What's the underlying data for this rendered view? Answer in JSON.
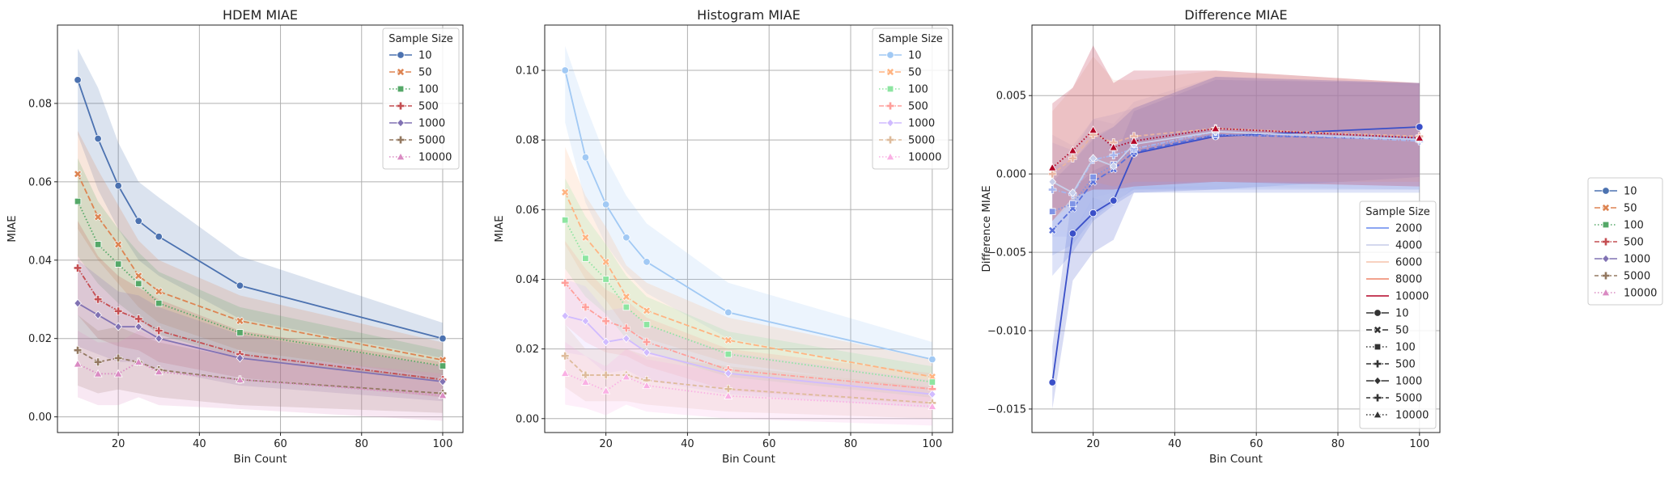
{
  "chart_data": [
    {
      "type": "line",
      "title": "HDEM MIAE",
      "xlabel": "Bin Count",
      "ylabel": "MIAE",
      "xlim": [
        5,
        105
      ],
      "ylim": [
        -0.004,
        0.1
      ],
      "xticks": [
        20,
        40,
        60,
        80,
        100
      ],
      "yticks": [
        0.0,
        0.02,
        0.04,
        0.06,
        0.08
      ],
      "ytick_labels": [
        "0.00",
        "0.02",
        "0.04",
        "0.06",
        "0.08"
      ],
      "grid": true,
      "legend": {
        "title": "Sample Size",
        "placement": "top-right"
      },
      "x": [
        10,
        15,
        20,
        25,
        30,
        50,
        100
      ],
      "series": [
        {
          "name": "10",
          "color": "#4c72b0",
          "dash": "",
          "marker": "circle",
          "values": [
            0.086,
            0.071,
            0.059,
            0.05,
            0.046,
            0.0335,
            0.02
          ],
          "lower": [
            0.072,
            0.058,
            0.048,
            0.04,
            0.036,
            0.025,
            0.015
          ],
          "upper": [
            0.094,
            0.084,
            0.07,
            0.06,
            0.056,
            0.041,
            0.024
          ]
        },
        {
          "name": "50",
          "color": "#dd8452",
          "dash": "7,3",
          "marker": "x",
          "values": [
            0.062,
            0.051,
            0.044,
            0.036,
            0.032,
            0.0245,
            0.0145
          ],
          "lower": [
            0.048,
            0.04,
            0.034,
            0.028,
            0.024,
            0.017,
            0.01
          ],
          "upper": [
            0.073,
            0.063,
            0.054,
            0.045,
            0.04,
            0.031,
            0.019
          ]
        },
        {
          "name": "100",
          "color": "#55a868",
          "dash": "1.5,2.5",
          "marker": "square",
          "values": [
            0.055,
            0.044,
            0.039,
            0.034,
            0.029,
            0.0215,
            0.013
          ],
          "lower": [
            0.041,
            0.034,
            0.029,
            0.025,
            0.021,
            0.015,
            0.009
          ],
          "upper": [
            0.066,
            0.055,
            0.048,
            0.042,
            0.037,
            0.028,
            0.017
          ]
        },
        {
          "name": "500",
          "color": "#c44e52",
          "dash": "6,2,1.5,2",
          "marker": "plus",
          "values": [
            0.038,
            0.03,
            0.027,
            0.025,
            0.022,
            0.016,
            0.0095
          ],
          "lower": [
            0.026,
            0.02,
            0.018,
            0.017,
            0.014,
            0.01,
            0.005
          ],
          "upper": [
            0.05,
            0.041,
            0.036,
            0.033,
            0.03,
            0.022,
            0.014
          ]
        },
        {
          "name": "1000",
          "color": "#8172b3",
          "dash": "",
          "marker": "diamond",
          "values": [
            0.029,
            0.026,
            0.023,
            0.023,
            0.02,
            0.015,
            0.009
          ],
          "lower": [
            0.018,
            0.016,
            0.014,
            0.014,
            0.012,
            0.008,
            0.004
          ],
          "upper": [
            0.04,
            0.036,
            0.032,
            0.031,
            0.028,
            0.021,
            0.013
          ]
        },
        {
          "name": "5000",
          "color": "#937860",
          "dash": "5,3",
          "marker": "plus",
          "values": [
            0.017,
            0.014,
            0.015,
            0.014,
            0.012,
            0.0095,
            0.006
          ],
          "lower": [
            0.008,
            0.006,
            0.007,
            0.006,
            0.005,
            0.003,
            0.001
          ],
          "upper": [
            0.026,
            0.022,
            0.023,
            0.021,
            0.019,
            0.015,
            0.01
          ]
        },
        {
          "name": "10000",
          "color": "#da8bc3",
          "dash": "1.5,2.5",
          "marker": "triangle",
          "values": [
            0.0135,
            0.011,
            0.011,
            0.014,
            0.0115,
            0.0095,
            0.0055
          ],
          "lower": [
            0.005,
            0.003,
            0.003,
            0.005,
            0.003,
            0.002,
            -0.001
          ],
          "upper": [
            0.022,
            0.019,
            0.019,
            0.022,
            0.02,
            0.016,
            0.011
          ]
        }
      ]
    },
    {
      "type": "line",
      "title": "Histogram MIAE",
      "xlabel": "Bin Count",
      "ylabel": "MIAE",
      "xlim": [
        5,
        105
      ],
      "ylim": [
        -0.004,
        0.113
      ],
      "xticks": [
        20,
        40,
        60,
        80,
        100
      ],
      "yticks": [
        0.0,
        0.02,
        0.04,
        0.06,
        0.08,
        0.1
      ],
      "ytick_labels": [
        "0.00",
        "0.02",
        "0.04",
        "0.06",
        "0.08",
        "0.10"
      ],
      "grid": true,
      "legend": {
        "title": "Sample Size",
        "placement": "top-right"
      },
      "x": [
        10,
        15,
        20,
        25,
        30,
        50,
        100
      ],
      "series": [
        {
          "name": "10",
          "color": "#a1c9f4",
          "dash": "",
          "marker": "circle",
          "values": [
            0.1,
            0.075,
            0.0615,
            0.052,
            0.045,
            0.0305,
            0.017
          ],
          "lower": [
            0.085,
            0.062,
            0.05,
            0.042,
            0.036,
            0.023,
            0.012
          ],
          "upper": [
            0.107,
            0.09,
            0.075,
            0.064,
            0.056,
            0.039,
            0.022
          ]
        },
        {
          "name": "50",
          "color": "#ffb482",
          "dash": "7,3",
          "marker": "x",
          "values": [
            0.065,
            0.052,
            0.045,
            0.035,
            0.031,
            0.0225,
            0.012
          ],
          "lower": [
            0.05,
            0.04,
            0.034,
            0.026,
            0.023,
            0.016,
            0.008
          ],
          "upper": [
            0.078,
            0.064,
            0.055,
            0.044,
            0.039,
            0.029,
            0.017
          ]
        },
        {
          "name": "100",
          "color": "#8de5a1",
          "dash": "1.5,2.5",
          "marker": "square",
          "values": [
            0.057,
            0.046,
            0.04,
            0.032,
            0.027,
            0.0185,
            0.0105
          ],
          "lower": [
            0.043,
            0.035,
            0.03,
            0.023,
            0.019,
            0.012,
            0.006
          ],
          "upper": [
            0.069,
            0.058,
            0.05,
            0.041,
            0.035,
            0.025,
            0.015
          ]
        },
        {
          "name": "500",
          "color": "#ff9f9b",
          "dash": "6,2,1.5,2",
          "marker": "plus",
          "values": [
            0.039,
            0.032,
            0.028,
            0.026,
            0.022,
            0.014,
            0.0085
          ],
          "lower": [
            0.027,
            0.022,
            0.019,
            0.018,
            0.015,
            0.008,
            0.004
          ],
          "upper": [
            0.051,
            0.043,
            0.037,
            0.034,
            0.029,
            0.02,
            0.013
          ]
        },
        {
          "name": "1000",
          "color": "#d0bbff",
          "dash": "",
          "marker": "diamond",
          "values": [
            0.0295,
            0.028,
            0.022,
            0.023,
            0.019,
            0.013,
            0.007
          ],
          "lower": [
            0.019,
            0.018,
            0.013,
            0.014,
            0.011,
            0.007,
            0.003
          ],
          "upper": [
            0.04,
            0.038,
            0.031,
            0.032,
            0.027,
            0.019,
            0.011
          ]
        },
        {
          "name": "5000",
          "color": "#debb9b",
          "dash": "5,3",
          "marker": "plus",
          "values": [
            0.018,
            0.0125,
            0.0125,
            0.0125,
            0.011,
            0.0085,
            0.0045
          ],
          "lower": [
            0.009,
            0.005,
            0.005,
            0.005,
            0.004,
            0.002,
            0.0
          ],
          "upper": [
            0.027,
            0.02,
            0.02,
            0.02,
            0.018,
            0.015,
            0.009
          ]
        },
        {
          "name": "10000",
          "color": "#fab0e4",
          "dash": "1.5,2.5",
          "marker": "triangle",
          "values": [
            0.013,
            0.0105,
            0.008,
            0.012,
            0.0095,
            0.0065,
            0.0035
          ],
          "lower": [
            0.004,
            0.003,
            0.001,
            0.004,
            0.002,
            0.0,
            -0.002
          ],
          "upper": [
            0.022,
            0.018,
            0.015,
            0.02,
            0.017,
            0.013,
            0.009
          ]
        }
      ]
    },
    {
      "type": "line",
      "title": "Difference MIAE",
      "xlabel": "Bin Count",
      "ylabel": "Difference MIAE",
      "xlim": [
        5,
        105
      ],
      "ylim": [
        -0.0165,
        0.0095
      ],
      "xticks": [
        20,
        40,
        60,
        80,
        100
      ],
      "yticks": [
        -0.015,
        -0.01,
        -0.005,
        0.0,
        0.005
      ],
      "ytick_labels": [
        "−0.015",
        "−0.010",
        "−0.005",
        "0.000",
        "0.005"
      ],
      "grid": true,
      "legend": {
        "title": "Sample Size",
        "placement": "lower-right"
      },
      "x": [
        10,
        15,
        20,
        25,
        30,
        50,
        100
      ],
      "series": [
        {
          "name": "10",
          "color": "#3a4fc8",
          "dash": "",
          "marker": "circle",
          "values": [
            -0.0133,
            -0.0038,
            -0.0025,
            -0.0017,
            0.0013,
            0.0024,
            0.003
          ],
          "lower": [
            -0.015,
            -0.0068,
            -0.005,
            -0.0042,
            -0.0012,
            -0.001,
            -0.0002
          ],
          "upper": [
            -0.011,
            -0.001,
            0.0002,
            0.0008,
            0.004,
            0.006,
            0.0058
          ]
        },
        {
          "name": "50",
          "color": "#5a71db",
          "dash": "7,3",
          "marker": "x",
          "values": [
            -0.0036,
            -0.0022,
            -0.0005,
            0.0003,
            0.0014,
            0.0025,
            0.0022
          ],
          "lower": [
            -0.0065,
            -0.005,
            -0.003,
            -0.002,
            -0.0012,
            -0.0012,
            -0.0012
          ],
          "upper": [
            -0.0005,
            0.0008,
            0.0022,
            0.003,
            0.0042,
            0.0062,
            0.0058
          ]
        },
        {
          "name": "100",
          "color": "#7f94e6",
          "dash": "1.5,2.5",
          "marker": "square",
          "values": [
            -0.0024,
            -0.0019,
            -0.0002,
            0.0006,
            0.0016,
            0.0025,
            0.0023
          ],
          "lower": [
            -0.0052,
            -0.0045,
            -0.0028,
            -0.0018,
            -0.001,
            -0.001,
            -0.001
          ],
          "upper": [
            0.0005,
            0.0008,
            0.0024,
            0.003,
            0.0042,
            0.0062,
            0.0058
          ]
        },
        {
          "name": "500",
          "color": "#a7b6ee",
          "dash": "6,2,1.5,2",
          "marker": "plus",
          "values": [
            -0.001,
            -0.0013,
            0.0009,
            0.0012,
            0.0016,
            0.0027,
            0.0021
          ],
          "lower": [
            -0.004,
            -0.004,
            -0.0015,
            -0.0012,
            -0.001,
            -0.0008,
            -0.001
          ],
          "upper": [
            0.002,
            0.0015,
            0.0035,
            0.0038,
            0.0042,
            0.0062,
            0.0056
          ]
        },
        {
          "name": "1000",
          "color": "#c8cfea",
          "dash": "",
          "marker": "diamond",
          "values": [
            -0.0005,
            -0.0012,
            0.001,
            0.0005,
            0.0019,
            0.0027,
            0.0022
          ],
          "lower": [
            -0.0035,
            -0.0038,
            -0.0015,
            -0.002,
            -0.0008,
            -0.0008,
            -0.001
          ],
          "upper": [
            0.0025,
            0.0018,
            0.0035,
            0.0032,
            0.0046,
            0.0062,
            0.0056
          ]
        },
        {
          "name": "5000",
          "color": "#e8b4a2",
          "dash": "5,3",
          "marker": "plus",
          "values": [
            0.0,
            0.001,
            0.0025,
            0.002,
            0.0024,
            0.0029,
            0.0024
          ],
          "lower": [
            -0.003,
            -0.0018,
            -0.0005,
            -0.0008,
            -0.0005,
            -0.0005,
            -0.0005
          ],
          "upper": [
            0.004,
            0.0055,
            0.0075,
            0.006,
            0.006,
            0.0066,
            0.0058
          ]
        },
        {
          "name": "10000",
          "color": "#b40426",
          "dash": "1.5,2.5",
          "marker": "triangle",
          "values": [
            0.0004,
            0.0015,
            0.0028,
            0.0017,
            0.0021,
            0.0029,
            0.0023
          ],
          "lower": [
            -0.003,
            -0.0015,
            -0.001,
            -0.001,
            -0.0008,
            -0.0005,
            -0.0008
          ],
          "upper": [
            0.0045,
            0.0055,
            0.0082,
            0.0058,
            0.0066,
            0.0066,
            0.0058
          ]
        }
      ],
      "legend_hue_entries": [
        {
          "name": "2000",
          "color": "#6788ee"
        },
        {
          "name": "4000",
          "color": "#c5cbe9"
        },
        {
          "name": "6000",
          "color": "#f5c4ac"
        },
        {
          "name": "8000",
          "color": "#ee8468"
        },
        {
          "name": "10000",
          "color": "#b40426"
        }
      ],
      "legend_style_entries": [
        {
          "name": "10",
          "dash": "",
          "marker": "circle"
        },
        {
          "name": "50",
          "dash": "7,3",
          "marker": "x"
        },
        {
          "name": "100",
          "dash": "1.5,2.5",
          "marker": "square"
        },
        {
          "name": "500",
          "dash": "6,2,1.5,2",
          "marker": "plus"
        },
        {
          "name": "1000",
          "dash": "",
          "marker": "diamond"
        },
        {
          "name": "5000",
          "dash": "5,3",
          "marker": "plus"
        },
        {
          "name": "10000",
          "dash": "1.5,2.5",
          "marker": "triangle"
        }
      ]
    }
  ],
  "figure_legend": {
    "placement": "right",
    "entries": [
      {
        "name": "10",
        "color": "#4c72b0",
        "dash": "",
        "marker": "circle"
      },
      {
        "name": "50",
        "color": "#dd8452",
        "dash": "7,3",
        "marker": "x"
      },
      {
        "name": "100",
        "color": "#55a868",
        "dash": "1.5,2.5",
        "marker": "square"
      },
      {
        "name": "500",
        "color": "#c44e52",
        "dash": "6,2,1.5,2",
        "marker": "plus"
      },
      {
        "name": "1000",
        "color": "#8172b3",
        "dash": "",
        "marker": "diamond"
      },
      {
        "name": "5000",
        "color": "#937860",
        "dash": "5,3",
        "marker": "plus"
      },
      {
        "name": "10000",
        "color": "#da8bc3",
        "dash": "1.5,2.5",
        "marker": "triangle"
      }
    ]
  }
}
